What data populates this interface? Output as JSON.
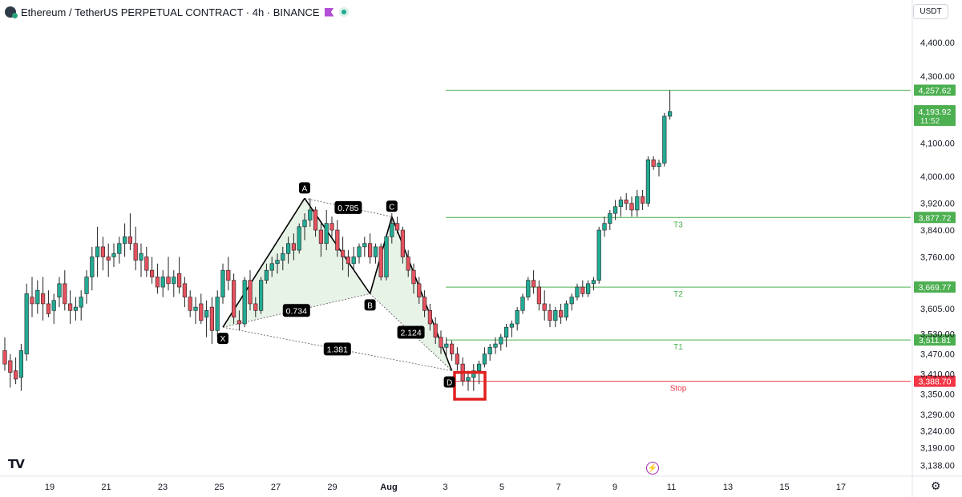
{
  "header": {
    "title": "Ethereum / TetherUS PERPETUAL CONTRACT · 4h · BINANCE",
    "currency": "USDT"
  },
  "colors": {
    "up": "#22ab94",
    "down": "#e6525e",
    "pattern_fill": "#e6f2e6",
    "level_line": "#4caf50",
    "stop_line": "#f23645",
    "highlight_box": "#e0201e"
  },
  "chart_data": {
    "type": "candlestick",
    "price_range": [
      3110,
      4460
    ],
    "y_axis_ticks": [
      "4,400.00",
      "4,300.00",
      "4,100.00",
      "4,000.00",
      "3,920.00",
      "3,840.00",
      "3,760.00",
      "3,605.00",
      "3,530.00",
      "3,470.00",
      "3,410.00",
      "3,350.00",
      "3,290.00",
      "3,240.00",
      "3,190.00",
      "3,138.00"
    ],
    "x_axis_ticks": [
      "19",
      "21",
      "23",
      "25",
      "27",
      "29",
      "Aug",
      "3",
      "5",
      "7",
      "9",
      "11",
      "13",
      "15",
      "17"
    ],
    "candles": [
      {
        "o": 3480,
        "h": 3520,
        "l": 3420,
        "c": 3440
      },
      {
        "o": 3450,
        "h": 3470,
        "l": 3370,
        "c": 3415
      },
      {
        "o": 3420,
        "h": 3460,
        "l": 3380,
        "c": 3395
      },
      {
        "o": 3400,
        "h": 3500,
        "l": 3360,
        "c": 3480
      },
      {
        "o": 3470,
        "h": 3680,
        "l": 3450,
        "c": 3650
      },
      {
        "o": 3640,
        "h": 3700,
        "l": 3580,
        "c": 3620
      },
      {
        "o": 3620,
        "h": 3690,
        "l": 3590,
        "c": 3660
      },
      {
        "o": 3650,
        "h": 3700,
        "l": 3570,
        "c": 3620
      },
      {
        "o": 3620,
        "h": 3660,
        "l": 3580,
        "c": 3590
      },
      {
        "o": 3600,
        "h": 3650,
        "l": 3560,
        "c": 3630
      },
      {
        "o": 3640,
        "h": 3700,
        "l": 3610,
        "c": 3680
      },
      {
        "o": 3680,
        "h": 3720,
        "l": 3600,
        "c": 3620
      },
      {
        "o": 3620,
        "h": 3660,
        "l": 3560,
        "c": 3600
      },
      {
        "o": 3600,
        "h": 3640,
        "l": 3570,
        "c": 3610
      },
      {
        "o": 3610,
        "h": 3660,
        "l": 3570,
        "c": 3640
      },
      {
        "o": 3650,
        "h": 3720,
        "l": 3620,
        "c": 3700
      },
      {
        "o": 3700,
        "h": 3790,
        "l": 3660,
        "c": 3760
      },
      {
        "o": 3760,
        "h": 3850,
        "l": 3700,
        "c": 3790
      },
      {
        "o": 3790,
        "h": 3820,
        "l": 3720,
        "c": 3760
      },
      {
        "o": 3760,
        "h": 3800,
        "l": 3700,
        "c": 3750
      },
      {
        "o": 3760,
        "h": 3800,
        "l": 3730,
        "c": 3770
      },
      {
        "o": 3770,
        "h": 3820,
        "l": 3740,
        "c": 3800
      },
      {
        "o": 3800,
        "h": 3860,
        "l": 3760,
        "c": 3820
      },
      {
        "o": 3820,
        "h": 3890,
        "l": 3780,
        "c": 3800
      },
      {
        "o": 3800,
        "h": 3850,
        "l": 3720,
        "c": 3750
      },
      {
        "o": 3750,
        "h": 3800,
        "l": 3700,
        "c": 3770
      },
      {
        "o": 3760,
        "h": 3790,
        "l": 3700,
        "c": 3720
      },
      {
        "o": 3720,
        "h": 3760,
        "l": 3680,
        "c": 3700
      },
      {
        "o": 3700,
        "h": 3740,
        "l": 3650,
        "c": 3670
      },
      {
        "o": 3670,
        "h": 3720,
        "l": 3640,
        "c": 3700
      },
      {
        "o": 3700,
        "h": 3760,
        "l": 3660,
        "c": 3680
      },
      {
        "o": 3680,
        "h": 3720,
        "l": 3640,
        "c": 3700
      },
      {
        "o": 3710,
        "h": 3760,
        "l": 3650,
        "c": 3670
      },
      {
        "o": 3680,
        "h": 3700,
        "l": 3610,
        "c": 3640
      },
      {
        "o": 3640,
        "h": 3660,
        "l": 3580,
        "c": 3600
      },
      {
        "o": 3600,
        "h": 3640,
        "l": 3560,
        "c": 3610
      },
      {
        "o": 3620,
        "h": 3650,
        "l": 3560,
        "c": 3570
      },
      {
        "o": 3580,
        "h": 3630,
        "l": 3520,
        "c": 3600
      },
      {
        "o": 3610,
        "h": 3640,
        "l": 3500,
        "c": 3540
      },
      {
        "o": 3540,
        "h": 3660,
        "l": 3520,
        "c": 3640
      },
      {
        "o": 3640,
        "h": 3740,
        "l": 3620,
        "c": 3720
      },
      {
        "o": 3720,
        "h": 3760,
        "l": 3660,
        "c": 3690
      },
      {
        "o": 3690,
        "h": 3710,
        "l": 3560,
        "c": 3580
      },
      {
        "o": 3570,
        "h": 3600,
        "l": 3540,
        "c": 3560
      },
      {
        "o": 3560,
        "h": 3700,
        "l": 3550,
        "c": 3690
      },
      {
        "o": 3690,
        "h": 3720,
        "l": 3600,
        "c": 3620
      },
      {
        "o": 3620,
        "h": 3640,
        "l": 3580,
        "c": 3600
      },
      {
        "o": 3600,
        "h": 3700,
        "l": 3590,
        "c": 3690
      },
      {
        "o": 3690,
        "h": 3740,
        "l": 3680,
        "c": 3720
      },
      {
        "o": 3720,
        "h": 3760,
        "l": 3700,
        "c": 3740
      },
      {
        "o": 3740,
        "h": 3770,
        "l": 3710,
        "c": 3750
      },
      {
        "o": 3750,
        "h": 3790,
        "l": 3720,
        "c": 3770
      },
      {
        "o": 3770,
        "h": 3820,
        "l": 3740,
        "c": 3800
      },
      {
        "o": 3800,
        "h": 3830,
        "l": 3750,
        "c": 3780
      },
      {
        "o": 3780,
        "h": 3860,
        "l": 3770,
        "c": 3850
      },
      {
        "o": 3850,
        "h": 3890,
        "l": 3810,
        "c": 3870
      },
      {
        "o": 3870,
        "h": 3935,
        "l": 3850,
        "c": 3900
      },
      {
        "o": 3900,
        "h": 3910,
        "l": 3820,
        "c": 3840
      },
      {
        "o": 3840,
        "h": 3860,
        "l": 3760,
        "c": 3800
      },
      {
        "o": 3800,
        "h": 3900,
        "l": 3780,
        "c": 3860
      },
      {
        "o": 3860,
        "h": 3880,
        "l": 3820,
        "c": 3840
      },
      {
        "o": 3840,
        "h": 3870,
        "l": 3760,
        "c": 3780
      },
      {
        "o": 3780,
        "h": 3820,
        "l": 3720,
        "c": 3760
      },
      {
        "o": 3760,
        "h": 3780,
        "l": 3700,
        "c": 3740
      },
      {
        "o": 3740,
        "h": 3790,
        "l": 3720,
        "c": 3760
      },
      {
        "o": 3760,
        "h": 3800,
        "l": 3740,
        "c": 3790
      },
      {
        "o": 3790,
        "h": 3820,
        "l": 3760,
        "c": 3800
      },
      {
        "o": 3800,
        "h": 3830,
        "l": 3740,
        "c": 3760
      },
      {
        "o": 3760,
        "h": 3800,
        "l": 3740,
        "c": 3790
      },
      {
        "o": 3790,
        "h": 3800,
        "l": 3690,
        "c": 3700
      },
      {
        "o": 3700,
        "h": 3820,
        "l": 3690,
        "c": 3820
      },
      {
        "o": 3820,
        "h": 3890,
        "l": 3800,
        "c": 3860
      },
      {
        "o": 3860,
        "h": 3880,
        "l": 3830,
        "c": 3840
      },
      {
        "o": 3840,
        "h": 3850,
        "l": 3740,
        "c": 3760
      },
      {
        "o": 3760,
        "h": 3780,
        "l": 3700,
        "c": 3720
      },
      {
        "o": 3720,
        "h": 3740,
        "l": 3650,
        "c": 3680
      },
      {
        "o": 3680,
        "h": 3700,
        "l": 3620,
        "c": 3640
      },
      {
        "o": 3640,
        "h": 3660,
        "l": 3580,
        "c": 3600
      },
      {
        "o": 3600,
        "h": 3620,
        "l": 3540,
        "c": 3560
      },
      {
        "o": 3560,
        "h": 3580,
        "l": 3500,
        "c": 3520
      },
      {
        "o": 3520,
        "h": 3540,
        "l": 3470,
        "c": 3490
      },
      {
        "o": 3490,
        "h": 3520,
        "l": 3460,
        "c": 3500
      },
      {
        "o": 3500,
        "h": 3510,
        "l": 3450,
        "c": 3470
      },
      {
        "o": 3470,
        "h": 3490,
        "l": 3420,
        "c": 3440
      },
      {
        "o": 3440,
        "h": 3460,
        "l": 3375,
        "c": 3390
      },
      {
        "o": 3390,
        "h": 3420,
        "l": 3360,
        "c": 3400
      },
      {
        "o": 3400,
        "h": 3440,
        "l": 3360,
        "c": 3420
      },
      {
        "o": 3420,
        "h": 3450,
        "l": 3380,
        "c": 3440
      },
      {
        "o": 3440,
        "h": 3490,
        "l": 3430,
        "c": 3470
      },
      {
        "o": 3470,
        "h": 3500,
        "l": 3450,
        "c": 3490
      },
      {
        "o": 3490,
        "h": 3520,
        "l": 3470,
        "c": 3500
      },
      {
        "o": 3500,
        "h": 3530,
        "l": 3480,
        "c": 3520
      },
      {
        "o": 3520,
        "h": 3560,
        "l": 3490,
        "c": 3550
      },
      {
        "o": 3550,
        "h": 3570,
        "l": 3520,
        "c": 3560
      },
      {
        "o": 3560,
        "h": 3610,
        "l": 3540,
        "c": 3600
      },
      {
        "o": 3600,
        "h": 3650,
        "l": 3590,
        "c": 3640
      },
      {
        "o": 3640,
        "h": 3700,
        "l": 3630,
        "c": 3690
      },
      {
        "o": 3690,
        "h": 3720,
        "l": 3650,
        "c": 3670
      },
      {
        "o": 3670,
        "h": 3690,
        "l": 3600,
        "c": 3620
      },
      {
        "o": 3620,
        "h": 3660,
        "l": 3570,
        "c": 3600
      },
      {
        "o": 3600,
        "h": 3620,
        "l": 3550,
        "c": 3570
      },
      {
        "o": 3570,
        "h": 3610,
        "l": 3550,
        "c": 3600
      },
      {
        "o": 3600,
        "h": 3620,
        "l": 3560,
        "c": 3580
      },
      {
        "o": 3580,
        "h": 3630,
        "l": 3570,
        "c": 3620
      },
      {
        "o": 3620,
        "h": 3650,
        "l": 3600,
        "c": 3640
      },
      {
        "o": 3640,
        "h": 3680,
        "l": 3630,
        "c": 3670
      },
      {
        "o": 3670,
        "h": 3690,
        "l": 3640,
        "c": 3650
      },
      {
        "o": 3650,
        "h": 3690,
        "l": 3640,
        "c": 3680
      },
      {
        "o": 3680,
        "h": 3700,
        "l": 3660,
        "c": 3690
      },
      {
        "o": 3690,
        "h": 3850,
        "l": 3680,
        "c": 3840
      },
      {
        "o": 3840,
        "h": 3880,
        "l": 3820,
        "c": 3860
      },
      {
        "o": 3860,
        "h": 3900,
        "l": 3840,
        "c": 3890
      },
      {
        "o": 3890,
        "h": 3930,
        "l": 3870,
        "c": 3910
      },
      {
        "o": 3910,
        "h": 3940,
        "l": 3880,
        "c": 3930
      },
      {
        "o": 3930,
        "h": 3950,
        "l": 3900,
        "c": 3920
      },
      {
        "o": 3920,
        "h": 3940,
        "l": 3880,
        "c": 3900
      },
      {
        "o": 3900,
        "h": 3960,
        "l": 3880,
        "c": 3940
      },
      {
        "o": 3940,
        "h": 3960,
        "l": 3900,
        "c": 3920
      },
      {
        "o": 3920,
        "h": 4060,
        "l": 3910,
        "c": 4050
      },
      {
        "o": 4050,
        "h": 4060,
        "l": 4020,
        "c": 4030
      },
      {
        "o": 4030,
        "h": 4050,
        "l": 4000,
        "c": 4040
      },
      {
        "o": 4040,
        "h": 4190,
        "l": 4030,
        "c": 4180
      },
      {
        "o": 4180,
        "h": 4257,
        "l": 4170,
        "c": 4193.92
      }
    ],
    "pattern": {
      "points": [
        {
          "label": "X",
          "i": 40,
          "price": 3550
        },
        {
          "label": "A",
          "i": 55,
          "price": 3935
        },
        {
          "label": "B",
          "i": 67,
          "price": 3650
        },
        {
          "label": "C",
          "i": 71,
          "price": 3880
        },
        {
          "label": "D",
          "i": 82,
          "price": 3420
        }
      ],
      "ratios": [
        {
          "text": "0.785",
          "from": "A",
          "to": "C"
        },
        {
          "text": "0.734",
          "from": "X",
          "to": "B"
        },
        {
          "text": "2.124",
          "from": "B",
          "to": "D"
        },
        {
          "text": "1.381",
          "from": "X",
          "to": "D"
        }
      ]
    },
    "levels": [
      {
        "price": 4257.62,
        "label": "",
        "tag": "4,257.62",
        "color": "#4caf50"
      },
      {
        "price": 3877.72,
        "label": "T3",
        "tag": "3,877.72",
        "color": "#4caf50"
      },
      {
        "price": 3669.77,
        "label": "T2",
        "tag": "3,669.77",
        "color": "#4caf50"
      },
      {
        "price": 3511.81,
        "label": "T1",
        "tag": "3,511.81",
        "color": "#4caf50"
      },
      {
        "price": 3388.7,
        "label": "Stop",
        "tag": "3,388.70",
        "color": "#f23645"
      }
    ],
    "last_price": {
      "price": 4193.92,
      "tag": "4,193.92",
      "countdown": "11:52"
    }
  }
}
